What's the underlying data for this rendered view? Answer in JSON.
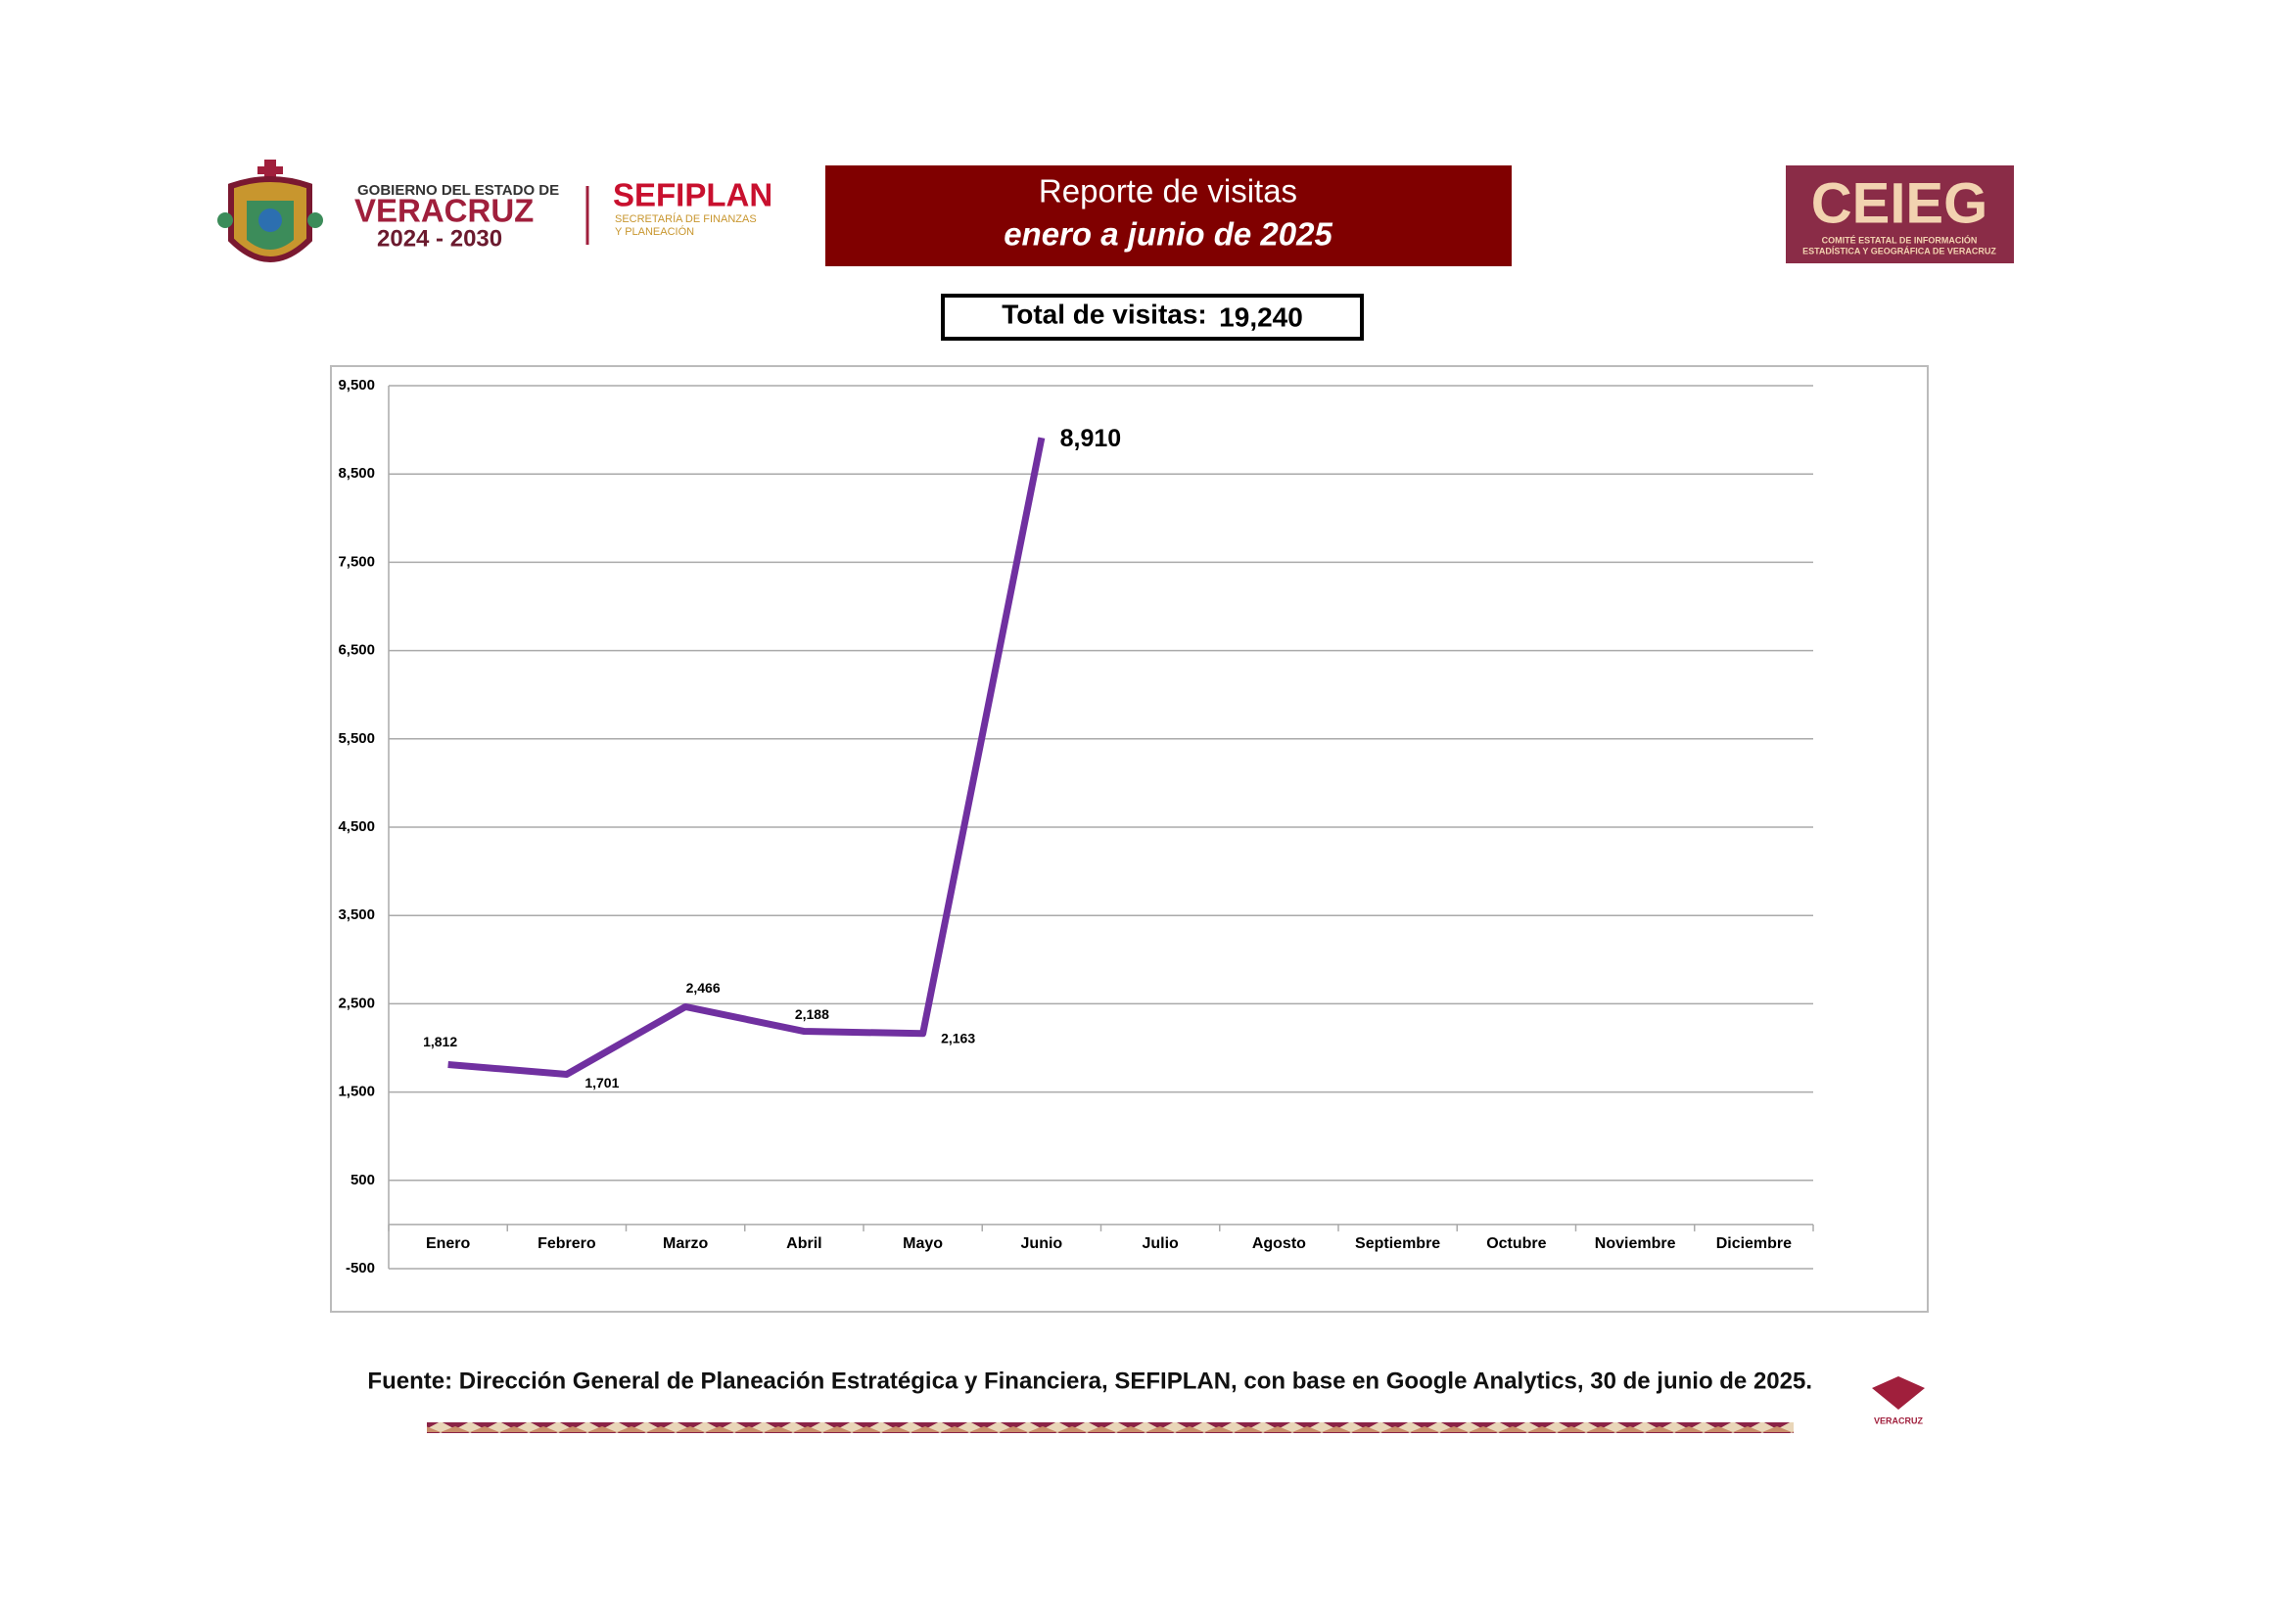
{
  "header": {
    "gov_line1": "GOBIERNO DEL ESTADO DE",
    "gov_line2": "VERACRUZ",
    "gov_line3": "2024 - 2030",
    "sefiplan": "SEFIPLAN",
    "sefiplan_sub1": "SECRETARÍA DE FINANZAS",
    "sefiplan_sub2": "Y PLANEACIÓN",
    "report_title": "Reporte de visitas",
    "report_period": "enero a junio de 2025",
    "ceieg": "CEIEG",
    "ceieg_sub1": "COMITÉ ESTATAL DE INFORMACIÓN",
    "ceieg_sub2": "ESTADÍSTICA Y GEOGRÁFICA DE VERACRUZ",
    "total_label": "Total de visitas:",
    "total_value": "19,240"
  },
  "chart_data": {
    "type": "line",
    "color": "#7030a0",
    "grid": true,
    "categories": [
      "Enero",
      "Febrero",
      "Marzo",
      "Abril",
      "Mayo",
      "Junio",
      "Julio",
      "Agosto",
      "Septiembre",
      "Octubre",
      "Noviembre",
      "Diciembre"
    ],
    "values": [
      1812,
      1701,
      2466,
      2188,
      2163,
      8910,
      null,
      null,
      null,
      null,
      null,
      null
    ],
    "value_labels": [
      "1,812",
      "1,701",
      "2,466",
      "2,188",
      "2,163",
      "8,910",
      null,
      null,
      null,
      null,
      null,
      null
    ],
    "ylim": [
      -500,
      9500
    ],
    "yticks": [
      -500,
      500,
      {
        "value": 1500,
        "label": "1,500"
      },
      {
        "value": 2500,
        "label": "2,500"
      },
      {
        "value": 3500,
        "label": "3,500"
      },
      {
        "value": 4500,
        "label": "4,500"
      },
      {
        "value": 5500,
        "label": "5,500"
      },
      {
        "value": 6500,
        "label": "6,500"
      },
      {
        "value": 7500,
        "label": "7,500"
      },
      {
        "value": 8500,
        "label": "8,500"
      },
      {
        "value": 9500,
        "label": "9,500"
      }
    ]
  },
  "footer": {
    "source": "Fuente: Dirección General de Planeación Estratégica y Financiera, SEFIPLAN, con base en Google Analytics, 30 de junio de 2025.",
    "logo_text": "VERACRUZ"
  }
}
